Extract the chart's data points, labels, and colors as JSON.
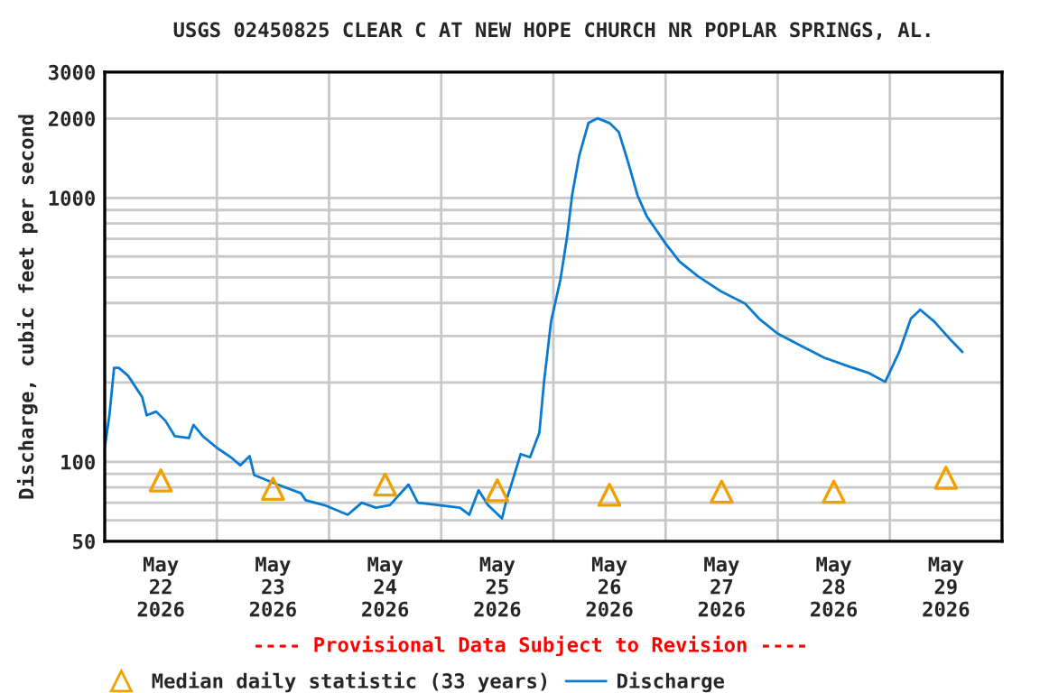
{
  "chart_data": {
    "type": "line",
    "title": "USGS 02450825 CLEAR C AT NEW HOPE CHURCH NR POPLAR SPRINGS, AL.",
    "ylabel": "Discharge, cubic feet per second",
    "annotations": [
      "---- Provisional Data Subject to Revision ----"
    ],
    "log": "y",
    "grid": true,
    "legend": "bottom",
    "xlim": [
      "2026-05-22T00:00",
      "2026-05-30T00:00"
    ],
    "xticks": [
      {
        "value": "2026-05-22T12:00",
        "label": "May\n22\n2026"
      },
      {
        "value": "2026-05-23T12:00",
        "label": "May\n23\n2026"
      },
      {
        "value": "2026-05-24T12:00",
        "label": "May\n24\n2026"
      },
      {
        "value": "2026-05-25T12:00",
        "label": "May\n25\n2026"
      },
      {
        "value": "2026-05-26T12:00",
        "label": "May\n26\n2026"
      },
      {
        "value": "2026-05-27T12:00",
        "label": "May\n27\n2026"
      },
      {
        "value": "2026-05-28T12:00",
        "label": "May\n28\n2026"
      },
      {
        "value": "2026-05-29T12:00",
        "label": "May\n29\n2026"
      },
      {
        "value": "2026-05-23T00:00",
        "label": null
      },
      {
        "value": "2026-05-24T00:00",
        "label": null
      },
      {
        "value": "2026-05-25T00:00",
        "label": null
      },
      {
        "value": "2026-05-26T00:00",
        "label": null
      },
      {
        "value": "2026-05-27T00:00",
        "label": null
      },
      {
        "value": "2026-05-28T00:00",
        "label": null
      },
      {
        "value": "2026-05-29T00:00",
        "label": null
      }
    ],
    "ylim": [
      50,
      3000
    ],
    "yticks": [
      50,
      {
        "value": 60,
        "label": null
      },
      {
        "value": 70,
        "label": null
      },
      {
        "value": 80,
        "label": null
      },
      {
        "value": 90,
        "label": null
      },
      100,
      {
        "value": 200,
        "label": null
      },
      {
        "value": 300,
        "label": null
      },
      {
        "value": 400,
        "label": null
      },
      {
        "value": 500,
        "label": null
      },
      {
        "value": 600,
        "label": null
      },
      {
        "value": 700,
        "label": null
      },
      {
        "value": 800,
        "label": null
      },
      {
        "value": 900,
        "label": null
      },
      1000,
      2000,
      3000
    ],
    "series": [
      {
        "name": "Median daily statistic (33 years)",
        "type": "scatter",
        "marker": "triangle",
        "color": "#f0a000",
        "x": [
          "2026-05-22T12:00",
          "2026-05-23T12:00",
          "2026-05-24T12:00",
          "2026-05-25T12:00",
          "2026-05-26T12:00",
          "2026-05-27T12:00",
          "2026-05-28T12:00",
          "2026-05-29T12:00"
        ],
        "values": [
          85,
          79,
          82,
          78,
          75,
          77,
          77,
          87
        ]
      },
      {
        "name": "Discharge",
        "color": "#0a7ad0",
        "x": [
          "2026-05-22T00:00",
          "2026-05-22T01:00",
          "2026-05-22T02:00",
          "2026-05-22T03:00",
          "2026-05-22T05:00",
          "2026-05-22T08:00",
          "2026-05-22T09:00",
          "2026-05-22T11:00",
          "2026-05-22T13:00",
          "2026-05-22T15:00",
          "2026-05-22T18:00",
          "2026-05-22T19:00",
          "2026-05-22T21:00",
          "2026-05-23T00:00",
          "2026-05-23T03:00",
          "2026-05-23T05:00",
          "2026-05-23T07:00",
          "2026-05-23T08:00",
          "2026-05-23T13:00",
          "2026-05-23T18:00",
          "2026-05-23T19:00",
          "2026-05-23T23:00",
          "2026-05-24T04:00",
          "2026-05-24T07:00",
          "2026-05-24T10:00",
          "2026-05-24T13:00",
          "2026-05-24T17:00",
          "2026-05-24T19:00",
          "2026-05-24T22:00",
          "2026-05-25T04:00",
          "2026-05-25T06:00",
          "2026-05-25T08:00",
          "2026-05-25T10:00",
          "2026-05-25T13:00",
          "2026-05-25T14:00",
          "2026-05-25T15:00",
          "2026-05-25T17:00",
          "2026-05-25T19:00",
          "2026-05-25T21:00",
          "2026-05-25T22:00",
          "2026-05-25T23:30",
          "2026-05-26T01:30",
          "2026-05-26T03:00",
          "2026-05-26T04:00",
          "2026-05-26T05:30",
          "2026-05-26T07:30",
          "2026-05-26T09:30",
          "2026-05-26T12:00",
          "2026-05-26T14:00",
          "2026-05-26T16:00",
          "2026-05-26T18:00",
          "2026-05-26T20:00",
          "2026-05-27T00:00",
          "2026-05-27T03:00",
          "2026-05-27T07:00",
          "2026-05-27T12:00",
          "2026-05-27T17:00",
          "2026-05-27T20:00",
          "2026-05-28T00:00",
          "2026-05-28T05:00",
          "2026-05-28T10:00",
          "2026-05-28T15:30",
          "2026-05-28T19:30",
          "2026-05-28T23:00",
          "2026-05-29T02:00",
          "2026-05-29T04:30",
          "2026-05-29T06:30",
          "2026-05-29T09:30",
          "2026-05-29T13:00",
          "2026-05-29T15:30"
        ],
        "values": [
          113,
          150,
          227,
          227,
          212,
          176,
          150,
          155,
          143,
          125,
          123,
          138,
          125,
          113,
          104,
          97,
          105,
          89,
          82,
          76,
          71.5,
          68.5,
          63,
          70,
          67,
          68.5,
          82,
          70,
          69,
          67,
          63,
          78,
          68.5,
          61,
          72,
          82,
          107,
          104,
          129,
          201,
          340,
          490,
          727,
          1023,
          1439,
          1923,
          2004,
          1923,
          1777,
          1365,
          1023,
          851,
          672,
          574,
          504,
          441,
          398,
          349,
          306,
          275,
          248,
          229,
          217,
          201,
          261,
          349,
          377,
          340,
          290,
          261
        ]
      }
    ]
  }
}
